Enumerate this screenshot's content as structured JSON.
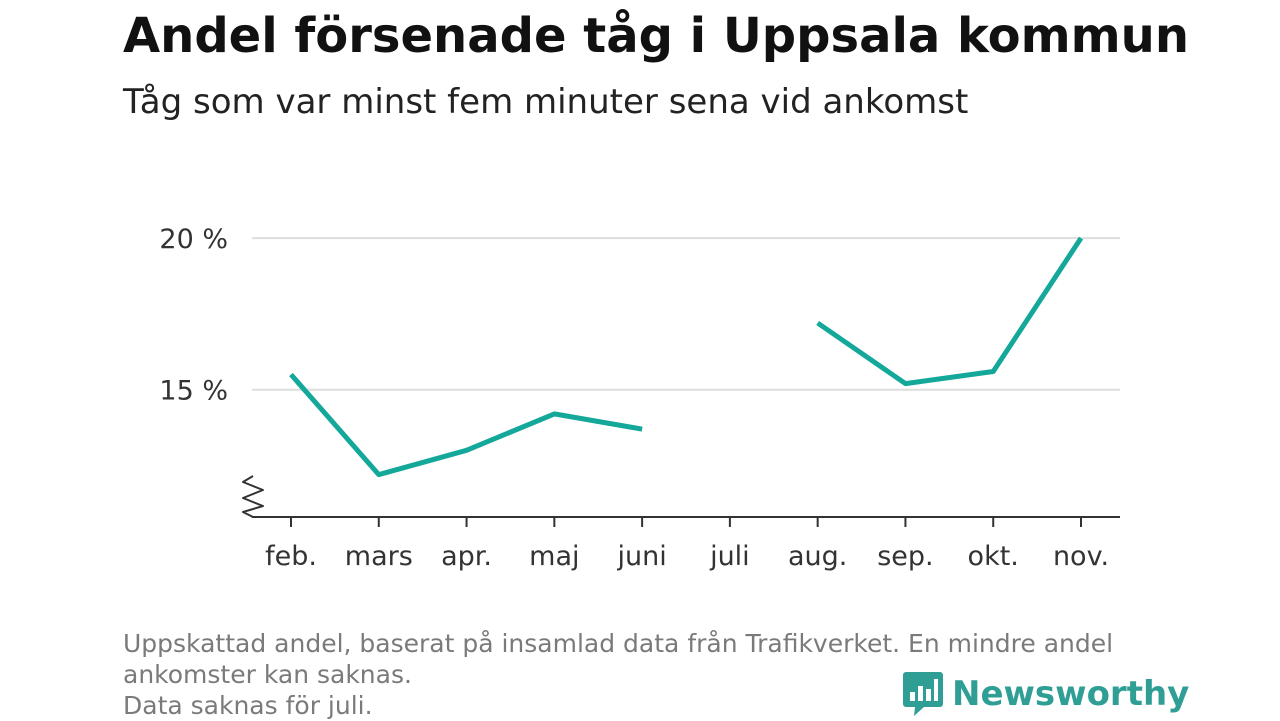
{
  "chart_data": {
    "type": "line",
    "title": "Andel försenade tåg i Uppsala kommun",
    "subtitle": "Tåg som var minst fem minuter sena vid ankomst",
    "categories": [
      "feb.",
      "mars",
      "apr.",
      "maj",
      "juni",
      "juli",
      "aug.",
      "sep.",
      "okt.",
      "nov."
    ],
    "series": [
      {
        "values": [
          15.5,
          12.2,
          13.0,
          14.2,
          13.7,
          null,
          17.2,
          15.2,
          15.6,
          20.0
        ]
      }
    ],
    "yticks": [
      {
        "value": 15,
        "label": "15 %"
      },
      {
        "value": 20,
        "label": "20 %"
      }
    ],
    "ylim": [
      10.8,
      20.4
    ],
    "axis_break": true,
    "grid": true,
    "line_color": "#14a89a",
    "grid_color": "#dddddd"
  },
  "notes": [
    "Uppskattad andel, baserat på insamlad data från Trafikverket. En mindre andel",
    "ankomster kan saknas.",
    "Data saknas för juli."
  ],
  "brand": {
    "name": "Newsworthy",
    "icon": "bar-chart-speech-bubble-icon",
    "color": "#2f9e94"
  }
}
